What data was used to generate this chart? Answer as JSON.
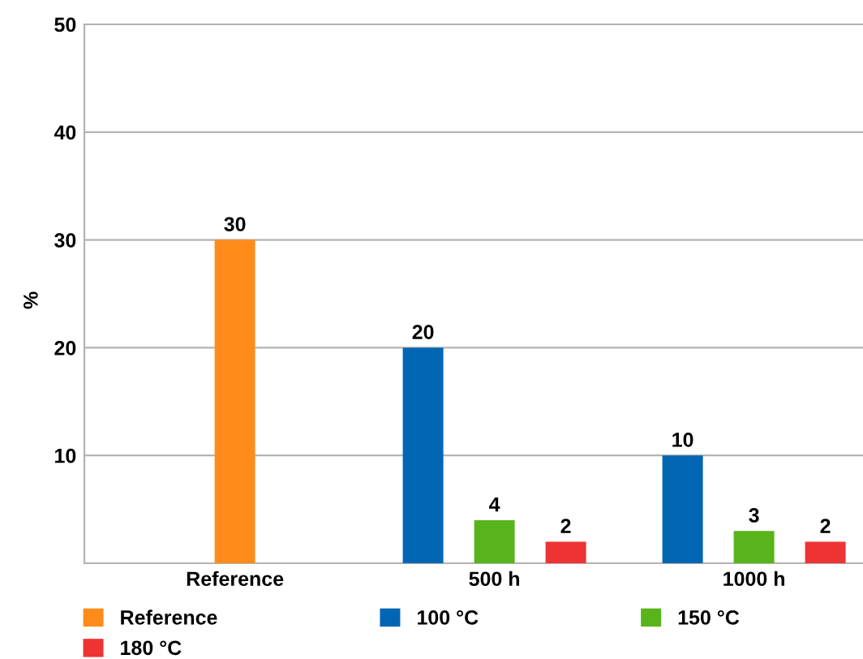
{
  "chart_data": {
    "type": "bar",
    "ylabel": "%",
    "categories": [
      "Reference",
      "500 h",
      "1000 h"
    ],
    "series": [
      {
        "name": "Reference",
        "color": "#ff8c1a",
        "values": [
          30,
          null,
          null
        ]
      },
      {
        "name": "100 °C",
        "color": "#0066b3",
        "values": [
          null,
          20,
          10
        ]
      },
      {
        "name": "150 °C",
        "color": "#58b41a",
        "values": [
          null,
          4,
          3
        ]
      },
      {
        "name": "180 °C",
        "color": "#ee3333",
        "values": [
          null,
          2,
          2
        ]
      }
    ],
    "ylim": [
      0,
      50
    ],
    "yticks": [
      {
        "value": 0,
        "label": null
      },
      10,
      20,
      30,
      40,
      50
    ],
    "grid": "y",
    "legend": "bottom",
    "data_labels": true
  }
}
